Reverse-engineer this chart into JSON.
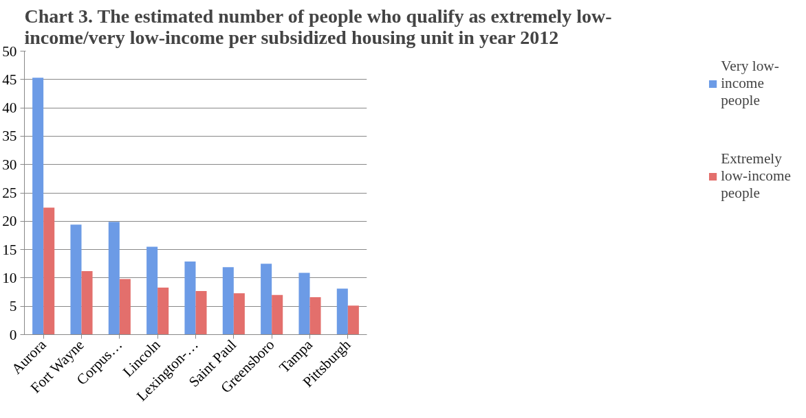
{
  "chart_data": {
    "type": "bar",
    "title": "Chart 3. The estimated number of people who qualify as extremely low-income/very low-income per subsidized housing unit in year 2012",
    "categories": [
      "Aurora",
      "Fort Wayne",
      "Corpus…",
      "Lincoln",
      "Lexington-…",
      "Saint Paul",
      "Greensboro",
      "Tampa",
      "Pittsburgh"
    ],
    "series": [
      {
        "name": "Very low-income people",
        "color": "#6c9be6",
        "values": [
          45.3,
          19.4,
          19.9,
          15.5,
          12.9,
          11.9,
          12.5,
          10.9,
          8.1
        ]
      },
      {
        "name": "Extremely low-income people",
        "color": "#e36f6c",
        "values": [
          22.4,
          11.2,
          9.8,
          8.3,
          7.7,
          7.3,
          7.0,
          6.6,
          5.1
        ]
      }
    ],
    "ylim": [
      0,
      50
    ],
    "yticks": [
      0,
      5,
      10,
      15,
      20,
      25,
      30,
      35,
      40,
      45,
      50
    ],
    "grid": "y",
    "legend": "right"
  }
}
